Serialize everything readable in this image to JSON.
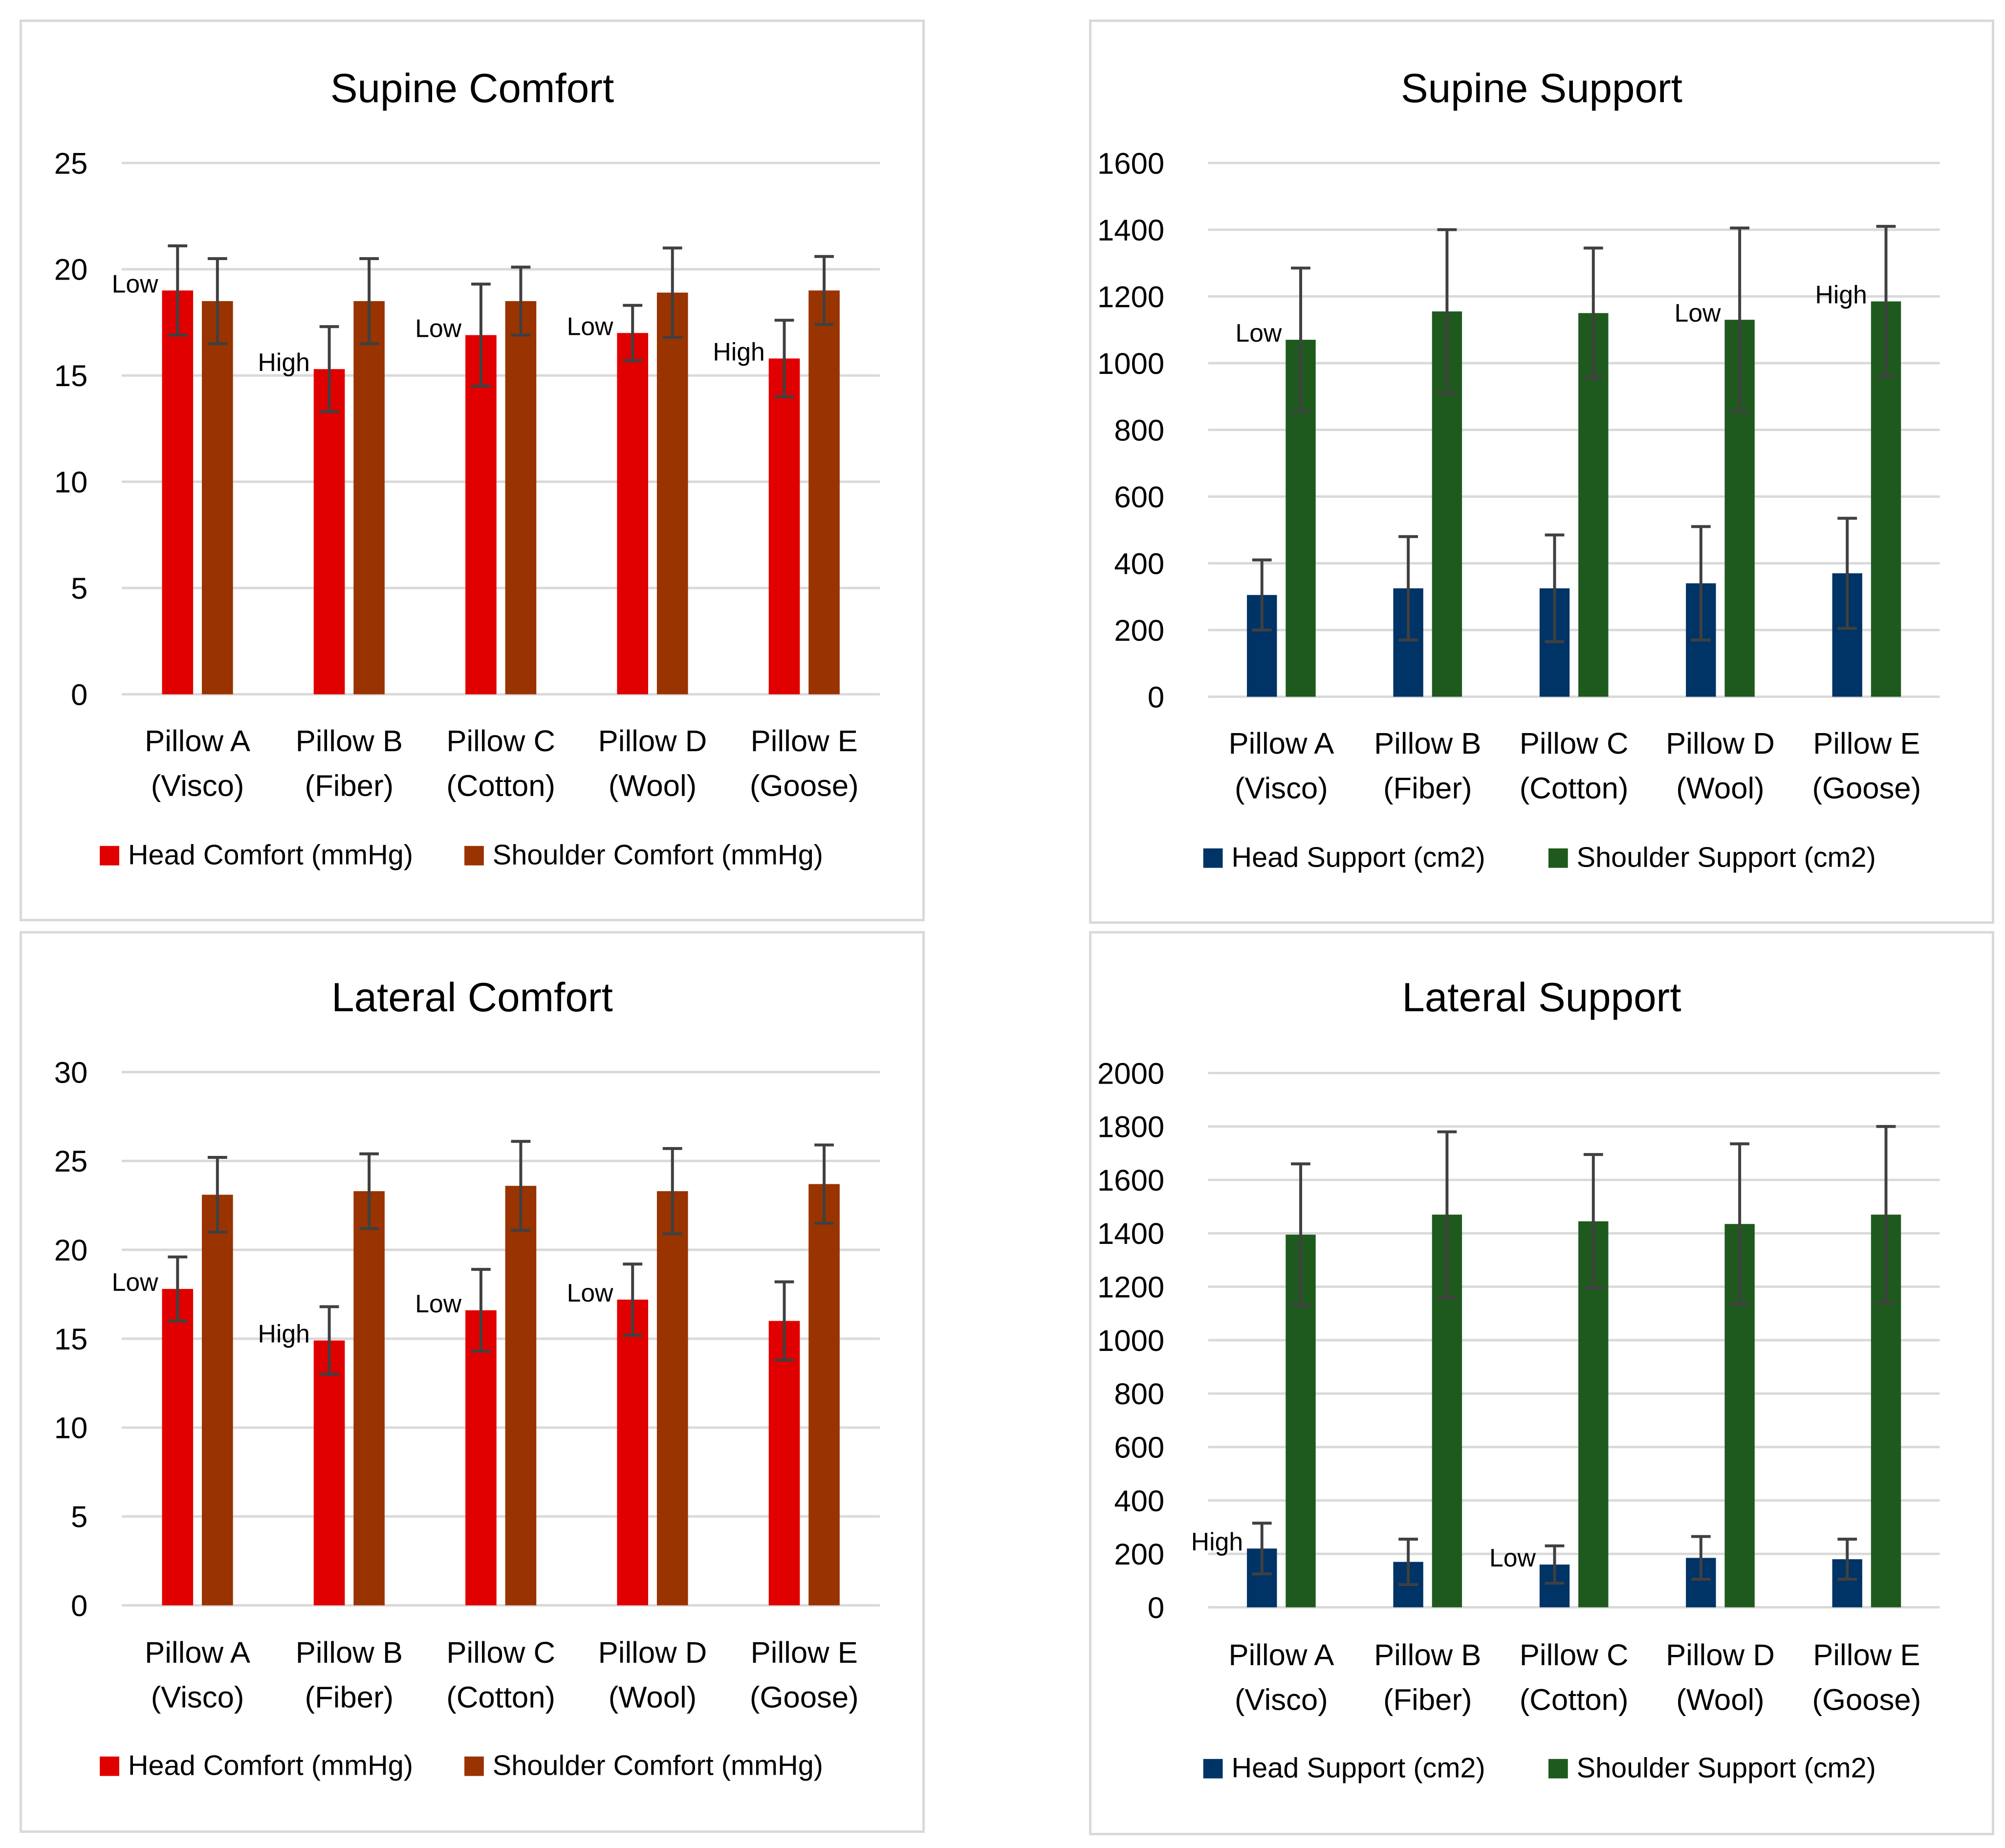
{
  "chart_data": [
    {
      "type": "bar",
      "title": "Supine Comfort",
      "categories": [
        [
          "Pillow A",
          "(Visco)"
        ],
        [
          "Pillow B",
          "(Fiber)"
        ],
        [
          "Pillow C",
          "(Cotton)"
        ],
        [
          "Pillow D",
          "(Wool)"
        ],
        [
          "Pillow E",
          "(Goose)"
        ]
      ],
      "ylim": [
        0,
        25
      ],
      "yticks": [
        0,
        5,
        10,
        15,
        20,
        25
      ],
      "grid": true,
      "legend_position": "bottom",
      "series": [
        {
          "name": "Head Comfort (mmHg)",
          "color": "#e00000",
          "values": [
            19.0,
            15.3,
            16.9,
            17.0,
            15.8
          ],
          "errors": [
            2.1,
            2.0,
            2.4,
            1.3,
            1.8
          ]
        },
        {
          "name": "Shoulder Comfort (mmHg)",
          "color": "#993300",
          "values": [
            18.5,
            18.5,
            18.5,
            18.9,
            19.0
          ],
          "errors": [
            2.0,
            2.0,
            1.6,
            2.1,
            1.6
          ]
        }
      ],
      "annotations": [
        {
          "text": "Low",
          "category": 0,
          "series": 0
        },
        {
          "text": "High",
          "category": 1,
          "series": 0
        },
        {
          "text": "Low",
          "category": 2,
          "series": 0
        },
        {
          "text": "Low",
          "category": 3,
          "series": 0
        },
        {
          "text": "High",
          "category": 4,
          "series": 0
        }
      ]
    },
    {
      "type": "bar",
      "title": "Supine Support",
      "categories": [
        [
          "Pillow A",
          "(Visco)"
        ],
        [
          "Pillow B",
          "(Fiber)"
        ],
        [
          "Pillow C",
          "(Cotton)"
        ],
        [
          "Pillow D",
          "(Wool)"
        ],
        [
          "Pillow E",
          "(Goose)"
        ]
      ],
      "ylim": [
        0,
        1600
      ],
      "yticks": [
        0,
        200,
        400,
        600,
        800,
        1000,
        1200,
        1400,
        1600
      ],
      "grid": true,
      "legend_position": "bottom",
      "series": [
        {
          "name": "Head Support (cm2)",
          "color": "#003366",
          "values": [
            305,
            325,
            325,
            340,
            370
          ],
          "errors": [
            105,
            155,
            160,
            170,
            165
          ]
        },
        {
          "name": "Shoulder Support (cm2)",
          "color": "#1e5a1e",
          "values": [
            1070,
            1155,
            1150,
            1130,
            1185
          ],
          "errors": [
            215,
            245,
            195,
            275,
            225
          ]
        }
      ],
      "annotations": [
        {
          "text": "Low",
          "category": 0,
          "series": 1
        },
        {
          "text": "Low",
          "category": 3,
          "series": 1
        },
        {
          "text": "High",
          "category": 4,
          "series": 1
        }
      ]
    },
    {
      "type": "bar",
      "title": "Lateral Comfort",
      "categories": [
        [
          "Pillow A",
          "(Visco)"
        ],
        [
          "Pillow B",
          "(Fiber)"
        ],
        [
          "Pillow C",
          "(Cotton)"
        ],
        [
          "Pillow D",
          "(Wool)"
        ],
        [
          "Pillow E",
          "(Goose)"
        ]
      ],
      "ylim": [
        0,
        30
      ],
      "yticks": [
        0,
        5,
        10,
        15,
        20,
        25,
        30
      ],
      "grid": true,
      "legend_position": "bottom",
      "series": [
        {
          "name": "Head Comfort (mmHg)",
          "color": "#e00000",
          "values": [
            17.8,
            14.9,
            16.6,
            17.2,
            16.0
          ],
          "errors": [
            1.8,
            1.9,
            2.3,
            2.0,
            2.2
          ]
        },
        {
          "name": "Shoulder Comfort (mmHg)",
          "color": "#993300",
          "values": [
            23.1,
            23.3,
            23.6,
            23.3,
            23.7
          ],
          "errors": [
            2.1,
            2.1,
            2.5,
            2.4,
            2.2
          ]
        }
      ],
      "annotations": [
        {
          "text": "Low",
          "category": 0,
          "series": 0
        },
        {
          "text": "High",
          "category": 1,
          "series": 0
        },
        {
          "text": "Low",
          "category": 2,
          "series": 0
        },
        {
          "text": "Low",
          "category": 3,
          "series": 0
        }
      ]
    },
    {
      "type": "bar",
      "title": "Lateral Support",
      "categories": [
        [
          "Pillow A",
          "(Visco)"
        ],
        [
          "Pillow B",
          "(Fiber)"
        ],
        [
          "Pillow C",
          "(Cotton)"
        ],
        [
          "Pillow D",
          "(Wool)"
        ],
        [
          "Pillow E",
          "(Goose)"
        ]
      ],
      "ylim": [
        0,
        2000
      ],
      "yticks": [
        0,
        200,
        400,
        600,
        800,
        1000,
        1200,
        1400,
        1600,
        1800,
        2000
      ],
      "grid": true,
      "legend_position": "bottom",
      "series": [
        {
          "name": "Head Support (cm2)",
          "color": "#003366",
          "values": [
            220,
            170,
            160,
            185,
            180
          ],
          "errors": [
            95,
            85,
            70,
            80,
            75
          ]
        },
        {
          "name": "Shoulder Support (cm2)",
          "color": "#1e5a1e",
          "values": [
            1395,
            1470,
            1445,
            1435,
            1470
          ],
          "errors": [
            265,
            310,
            250,
            300,
            330
          ]
        }
      ],
      "annotations": [
        {
          "text": "High",
          "category": 0,
          "series": 0
        },
        {
          "text": "Low",
          "category": 2,
          "series": 0
        }
      ]
    }
  ]
}
